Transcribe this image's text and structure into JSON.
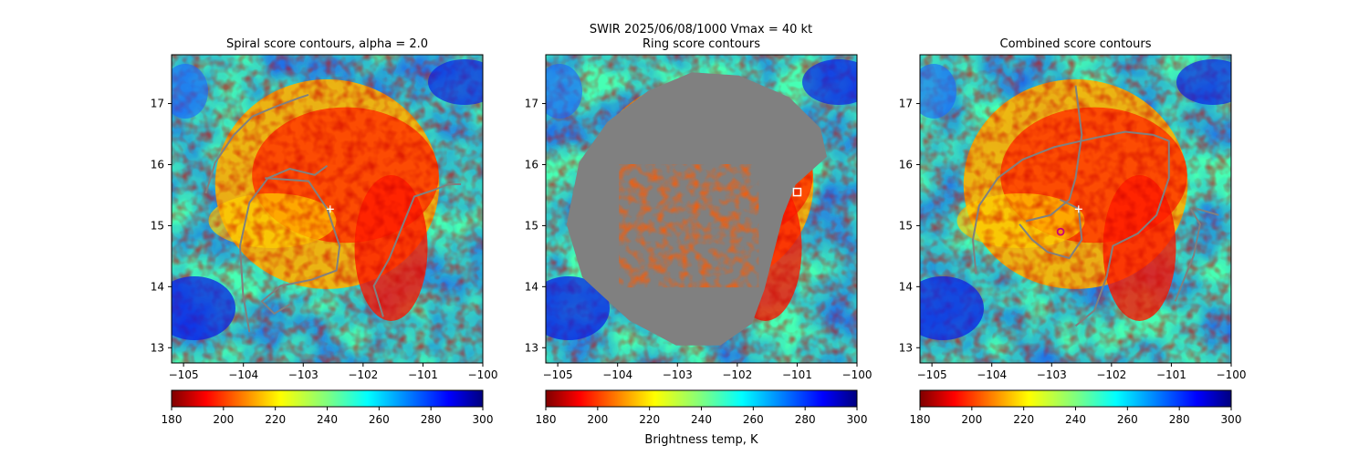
{
  "figure": {
    "suptitle_line1": "SWIR  2025/06/08/1000    Vmax = 40 kt"
  },
  "chart_data": [
    {
      "type": "heatmap",
      "title": "Spiral score contours, alpha =  2.0",
      "xlim": [
        -105.2,
        -100.0
      ],
      "ylim": [
        12.75,
        17.8
      ],
      "xticks": [
        -105,
        -104,
        -103,
        -102,
        -101,
        -100
      ],
      "yticks": [
        13,
        14,
        15,
        16,
        17
      ],
      "xtick_labels": [
        "−105",
        "−104",
        "−103",
        "−102",
        "−101",
        "−100"
      ],
      "ytick_labels": [
        "13",
        "14",
        "15",
        "16",
        "17"
      ],
      "colormap": "jet_r",
      "center_marker": {
        "symbol": "plus",
        "lon": -102.55,
        "lat": 15.27,
        "color": "#ffffff"
      },
      "contour_color": "#808080",
      "colorbar": {
        "range": [
          180,
          300
        ],
        "ticks": [
          180,
          200,
          220,
          240,
          260,
          280,
          300
        ],
        "tick_labels": [
          "180",
          "200",
          "220",
          "240",
          "260",
          "280",
          "300"
        ],
        "label": ""
      }
    },
    {
      "type": "heatmap",
      "title": "Ring score contours",
      "xlim": [
        -105.2,
        -100.0
      ],
      "ylim": [
        12.75,
        17.8
      ],
      "xticks": [
        -105,
        -104,
        -103,
        -102,
        -101,
        -100
      ],
      "yticks": [
        13,
        14,
        15,
        16,
        17
      ],
      "xtick_labels": [
        "−105",
        "−104",
        "−103",
        "−102",
        "−101",
        "−100"
      ],
      "ytick_labels": [
        "13",
        "14",
        "15",
        "16",
        "17"
      ],
      "colormap": "jet_r",
      "center_marker": {
        "symbol": "square",
        "lon": -101.0,
        "lat": 15.55,
        "color": "#ffffff"
      },
      "contour_color": "#808080",
      "colorbar": {
        "range": [
          180,
          300
        ],
        "ticks": [
          180,
          200,
          220,
          240,
          260,
          280,
          300
        ],
        "tick_labels": [
          "180",
          "200",
          "220",
          "240",
          "260",
          "280",
          "300"
        ],
        "label": "Brightness temp, K"
      }
    },
    {
      "type": "heatmap",
      "title": "Combined score contours",
      "xlim": [
        -105.2,
        -100.0
      ],
      "ylim": [
        12.75,
        17.8
      ],
      "xticks": [
        -105,
        -104,
        -103,
        -102,
        -101,
        -100
      ],
      "yticks": [
        13,
        14,
        15,
        16,
        17
      ],
      "xtick_labels": [
        "−105",
        "−104",
        "−103",
        "−102",
        "−101",
        "−100"
      ],
      "ytick_labels": [
        "13",
        "14",
        "15",
        "16",
        "17"
      ],
      "colormap": "jet_r",
      "center_marker": {
        "symbol": "plus",
        "lon": -102.55,
        "lat": 15.27,
        "color": "#ffffff"
      },
      "secondary_marker": {
        "symbol": "circle",
        "lon": -102.85,
        "lat": 14.9,
        "color": "#c8007a"
      },
      "contour_color": "#808080",
      "colorbar": {
        "range": [
          180,
          300
        ],
        "ticks": [
          180,
          200,
          220,
          240,
          260,
          280,
          300
        ],
        "tick_labels": [
          "180",
          "200",
          "220",
          "240",
          "260",
          "280",
          "300"
        ],
        "label": ""
      }
    }
  ]
}
